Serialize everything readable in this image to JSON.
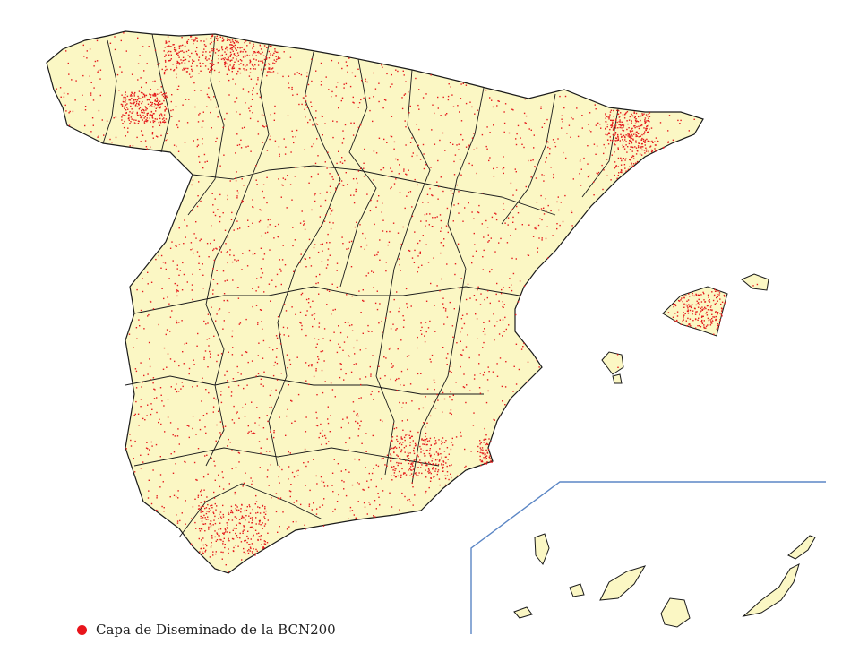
{
  "legend": {
    "label": "Capa de Diseminado de la BCN200",
    "dot_color": "#e8141b"
  },
  "colors": {
    "land": "#fbf7c4",
    "border": "#1a1a1a",
    "settlement": "#e41a1c",
    "inset_frame": "#5b86c5"
  }
}
